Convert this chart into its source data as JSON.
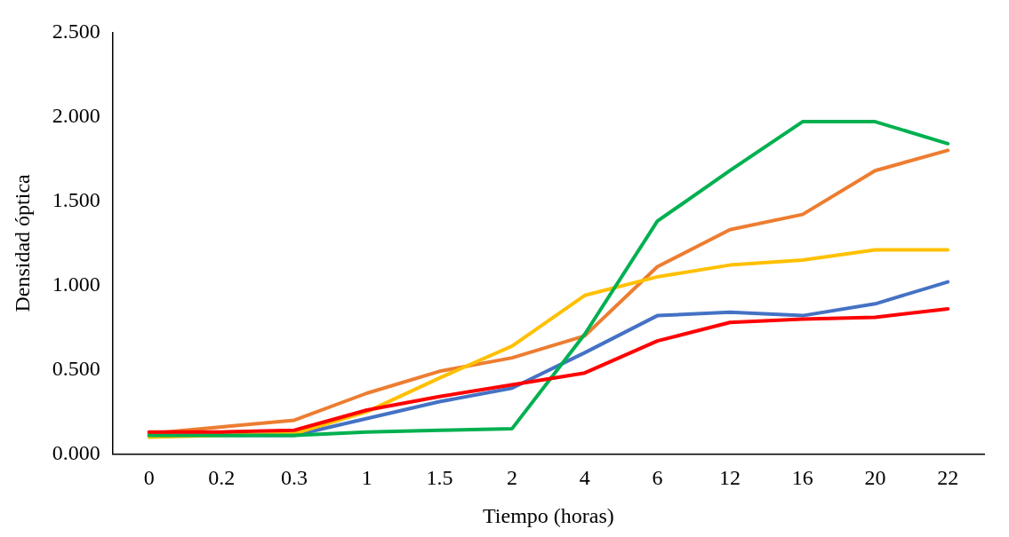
{
  "chart_data": {
    "type": "line",
    "xlabel": "Tiempo (horas)",
    "ylabel": "Densidad óptica",
    "categories": [
      "0",
      "0.2",
      "0.3",
      "1",
      "1.5",
      "2",
      "4",
      "6",
      "12",
      "16",
      "20",
      "22"
    ],
    "ylim": [
      0,
      2.5
    ],
    "yticks": [
      {
        "value": 0,
        "label": "0.000"
      },
      {
        "value": 0.5,
        "label": "0.500"
      },
      {
        "value": 1,
        "label": "1.000"
      },
      {
        "value": 1.5,
        "label": "1.500"
      },
      {
        "value": 2,
        "label": "2.000"
      },
      {
        "value": 2.5,
        "label": "2.500"
      }
    ],
    "marker": "none",
    "line_style": "solid",
    "series": [
      {
        "color": "#4472c4",
        "values": [
          0.11,
          0.11,
          0.11,
          0.21,
          0.31,
          0.39,
          0.6,
          0.82,
          0.84,
          0.82,
          0.89,
          1.02
        ]
      },
      {
        "color": "#ed7d31",
        "values": [
          0.12,
          0.16,
          0.2,
          0.36,
          0.49,
          0.57,
          0.7,
          1.11,
          1.33,
          1.42,
          1.68,
          1.8
        ]
      },
      {
        "color": "#ffc000",
        "values": [
          0.1,
          0.11,
          0.12,
          0.25,
          0.45,
          0.64,
          0.94,
          1.05,
          1.12,
          1.15,
          1.21,
          1.21
        ]
      },
      {
        "color": "#00b050",
        "values": [
          0.11,
          0.11,
          0.11,
          0.13,
          0.14,
          0.15,
          0.71,
          1.38,
          1.68,
          1.97,
          1.97,
          1.84
        ]
      },
      {
        "color": "#ff0000",
        "values": [
          0.13,
          0.13,
          0.14,
          0.26,
          0.34,
          0.41,
          0.48,
          0.67,
          0.78,
          0.8,
          0.81,
          0.86
        ]
      }
    ]
  }
}
